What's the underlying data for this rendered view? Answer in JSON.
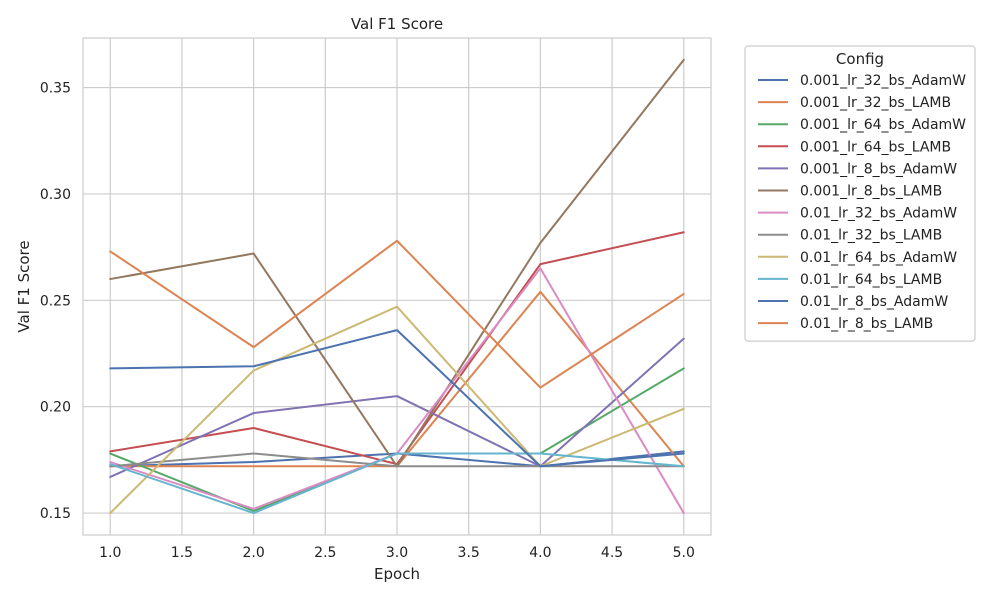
{
  "chart_data": {
    "type": "line",
    "title": "Val F1 Score",
    "xlabel": "Epoch",
    "ylabel": "Val F1 Score",
    "xlim": [
      0.81,
      5.19
    ],
    "ylim": [
      0.1397,
      0.3733
    ],
    "xticks": [
      1.0,
      1.5,
      2.0,
      2.5,
      3.0,
      3.5,
      4.0,
      4.5,
      5.0
    ],
    "xtick_labels": [
      "1.0",
      "1.5",
      "2.0",
      "2.5",
      "3.0",
      "3.5",
      "4.0",
      "4.5",
      "5.0"
    ],
    "yticks": [
      0.15,
      0.2,
      0.25,
      0.3,
      0.35
    ],
    "ytick_labels": [
      "0.15",
      "0.20",
      "0.25",
      "0.30",
      "0.35"
    ],
    "grid": true,
    "legend": {
      "title": "Config",
      "placement": "outside-right"
    },
    "x": [
      1,
      2,
      3,
      4,
      5
    ],
    "series": [
      {
        "name": "0.001_lr_32_bs_AdamW",
        "color": "#4c72b0",
        "values": [
          0.172,
          0.174,
          0.178,
          0.172,
          0.179
        ]
      },
      {
        "name": "0.001_lr_32_bs_LAMB",
        "color": "#dd8452",
        "values": [
          0.172,
          0.172,
          0.172,
          0.254,
          0.172
        ]
      },
      {
        "name": "0.001_lr_64_bs_AdamW",
        "color": "#55a868",
        "values": [
          0.178,
          0.151,
          0.178,
          0.178,
          0.218
        ]
      },
      {
        "name": "0.001_lr_64_bs_LAMB",
        "color": "#c44e52",
        "values": [
          0.179,
          0.19,
          0.173,
          0.267,
          0.282
        ]
      },
      {
        "name": "0.001_lr_8_bs_AdamW",
        "color": "#8172b3",
        "values": [
          0.167,
          0.197,
          0.205,
          0.172,
          0.232
        ]
      },
      {
        "name": "0.001_lr_8_bs_LAMB",
        "color": "#937860",
        "values": [
          0.26,
          0.272,
          0.172,
          0.277,
          0.363
        ]
      },
      {
        "name": "0.01_lr_32_bs_AdamW",
        "color": "#da8bc3",
        "values": [
          0.174,
          0.152,
          0.178,
          0.265,
          0.15
        ]
      },
      {
        "name": "0.01_lr_32_bs_LAMB",
        "color": "#8c8c8c",
        "values": [
          0.172,
          0.178,
          0.172,
          0.172,
          0.172
        ]
      },
      {
        "name": "0.01_lr_64_bs_AdamW",
        "color": "#ccb974",
        "values": [
          0.15,
          0.217,
          0.247,
          0.172,
          0.199
        ]
      },
      {
        "name": "0.01_lr_64_bs_LAMB",
        "color": "#64b5cd",
        "values": [
          0.173,
          0.15,
          0.178,
          0.178,
          0.172
        ]
      },
      {
        "name": "0.01_lr_8_bs_AdamW",
        "color": "#4c72b0",
        "values": [
          0.218,
          0.219,
          0.236,
          0.172,
          0.178
        ]
      },
      {
        "name": "0.01_lr_8_bs_LAMB",
        "color": "#dd8452",
        "values": [
          0.273,
          0.228,
          0.278,
          0.209,
          0.253
        ]
      }
    ]
  }
}
